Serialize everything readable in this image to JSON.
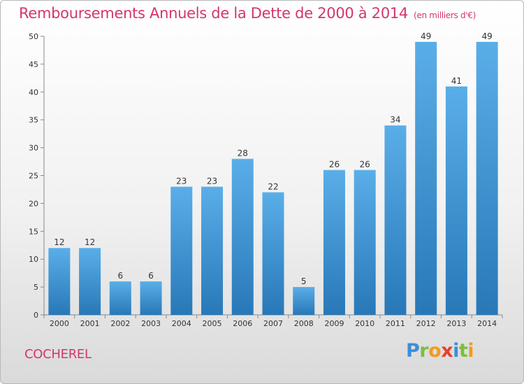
{
  "header": {
    "title": "Remboursements Annuels de la Dette de 2000 à 2014",
    "unit": "(en milliers d'€)"
  },
  "footer": {
    "commune": "COCHEREL",
    "brand_letters": [
      {
        "char": "P",
        "color": "#3b8fd8"
      },
      {
        "char": "r",
        "color": "#7cbf3c"
      },
      {
        "char": "o",
        "color": "#f39a1e"
      },
      {
        "char": "x",
        "color": "#e8402b"
      },
      {
        "char": "i",
        "color": "#3b8fd8"
      },
      {
        "char": "t",
        "color": "#7cbf3c"
      },
      {
        "char": "i",
        "color": "#f39a1e"
      }
    ]
  },
  "colors": {
    "title": "#d4356f",
    "bar_top": "#5aaee8",
    "bar_bottom": "#2878b8"
  },
  "chart_data": {
    "type": "bar",
    "categories": [
      "2000",
      "2001",
      "2002",
      "2003",
      "2004",
      "2005",
      "2006",
      "2007",
      "2008",
      "2009",
      "2010",
      "2011",
      "2012",
      "2013",
      "2014"
    ],
    "values": [
      12,
      12,
      6,
      6,
      23,
      23,
      28,
      22,
      5,
      26,
      26,
      34,
      49,
      41,
      49
    ],
    "title": "Remboursements Annuels de la Dette de 2000 à 2014",
    "ylim": [
      0,
      50
    ],
    "yticks": [
      0,
      5,
      10,
      15,
      20,
      25,
      30,
      35,
      40,
      45,
      50
    ],
    "grid": false,
    "legend": "none"
  }
}
